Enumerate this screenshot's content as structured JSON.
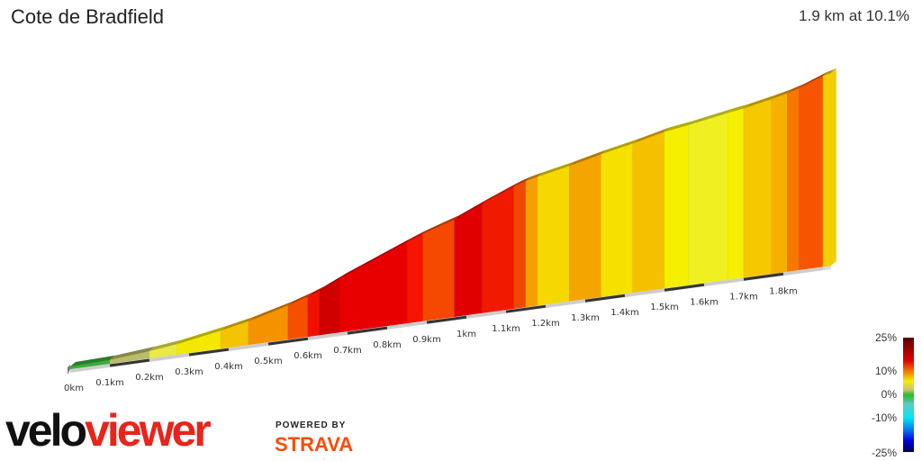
{
  "title": "Cote de Bradfield",
  "summary": "1.9 km at 10.1%",
  "branding": {
    "logo_part1": "velo",
    "logo_part2": "viewer",
    "powered_by": "POWERED BY",
    "strava": "STRAVA"
  },
  "chart_data": {
    "type": "area",
    "title": "Cote de Bradfield",
    "xlabel": "",
    "ylabel": "",
    "x_ticks": [
      "0km",
      "0.1km",
      "0.2km",
      "0.3km",
      "0.4km",
      "0.5km",
      "0.6km",
      "0.7km",
      "0.8km",
      "0.9km",
      "1km",
      "1.1km",
      "1.2km",
      "1.3km",
      "1.4km",
      "1.5km",
      "1.6km",
      "1.7km",
      "1.8km"
    ],
    "xlim_km": [
      0,
      1.92
    ],
    "segments": [
      {
        "from": 0,
        "to": 0.1,
        "gradient": 1,
        "color": "#3aae3a"
      },
      {
        "from": 0.1,
        "to": 0.2,
        "gradient": 3,
        "color": "#bcbc66"
      },
      {
        "from": 0.2,
        "to": 0.27,
        "gradient": 4,
        "color": "#eaea44"
      },
      {
        "from": 0.27,
        "to": 0.38,
        "gradient": 6,
        "color": "#f4e800"
      },
      {
        "from": 0.38,
        "to": 0.45,
        "gradient": 7,
        "color": "#f5c400"
      },
      {
        "from": 0.45,
        "to": 0.55,
        "gradient": 9,
        "color": "#f59200"
      },
      {
        "from": 0.55,
        "to": 0.6,
        "gradient": 11,
        "color": "#f55000"
      },
      {
        "from": 0.6,
        "to": 0.63,
        "gradient": 13,
        "color": "#f01000"
      },
      {
        "from": 0.63,
        "to": 0.68,
        "gradient": 16,
        "color": "#d00000"
      },
      {
        "from": 0.68,
        "to": 0.85,
        "gradient": 14,
        "color": "#e80000"
      },
      {
        "from": 0.85,
        "to": 0.89,
        "gradient": 13,
        "color": "#f51500"
      },
      {
        "from": 0.89,
        "to": 0.97,
        "gradient": 11,
        "color": "#f54800"
      },
      {
        "from": 0.97,
        "to": 1.04,
        "gradient": 15,
        "color": "#e00000"
      },
      {
        "from": 1.04,
        "to": 1.12,
        "gradient": 14,
        "color": "#f01a00"
      },
      {
        "from": 1.12,
        "to": 1.15,
        "gradient": 11,
        "color": "#f04800"
      },
      {
        "from": 1.15,
        "to": 1.18,
        "gradient": 8,
        "color": "#f5a000"
      },
      {
        "from": 1.18,
        "to": 1.26,
        "gradient": 7,
        "color": "#f5d800"
      },
      {
        "from": 1.26,
        "to": 1.34,
        "gradient": 8,
        "color": "#f5a500"
      },
      {
        "from": 1.34,
        "to": 1.42,
        "gradient": 7,
        "color": "#f5e000"
      },
      {
        "from": 1.42,
        "to": 1.5,
        "gradient": 8,
        "color": "#f5c000"
      },
      {
        "from": 1.5,
        "to": 1.56,
        "gradient": 5,
        "color": "#f5f000"
      },
      {
        "from": 1.56,
        "to": 1.66,
        "gradient": 6,
        "color": "#f0f020"
      },
      {
        "from": 1.66,
        "to": 1.7,
        "gradient": 5,
        "color": "#f5f000"
      },
      {
        "from": 1.7,
        "to": 1.77,
        "gradient": 7,
        "color": "#f5c800"
      },
      {
        "from": 1.77,
        "to": 1.81,
        "gradient": 8,
        "color": "#f5b000"
      },
      {
        "from": 1.81,
        "to": 1.84,
        "gradient": 10,
        "color": "#f57800"
      },
      {
        "from": 1.84,
        "to": 1.9,
        "gradient": 13,
        "color": "#f55500"
      },
      {
        "from": 1.9,
        "to": 1.92,
        "gradient": 8,
        "color": "#f5d000"
      }
    ],
    "legend": {
      "labels": [
        "25%",
        "10%",
        "0%",
        "-10%",
        "-25%"
      ],
      "stops": [
        {
          "value": 25,
          "color": "#5a0000"
        },
        {
          "value": 15,
          "color": "#e00000"
        },
        {
          "value": 10,
          "color": "#f58000"
        },
        {
          "value": 6,
          "color": "#f0f000"
        },
        {
          "value": 2,
          "color": "#c8c070"
        },
        {
          "value": 0,
          "color": "#20c020"
        },
        {
          "value": -4,
          "color": "#60c8c0"
        },
        {
          "value": -10,
          "color": "#00e8f0"
        },
        {
          "value": -15,
          "color": "#0080f0"
        },
        {
          "value": -20,
          "color": "#0000e0"
        },
        {
          "value": -25,
          "color": "#000050"
        }
      ],
      "placement": "bottom-right"
    }
  }
}
